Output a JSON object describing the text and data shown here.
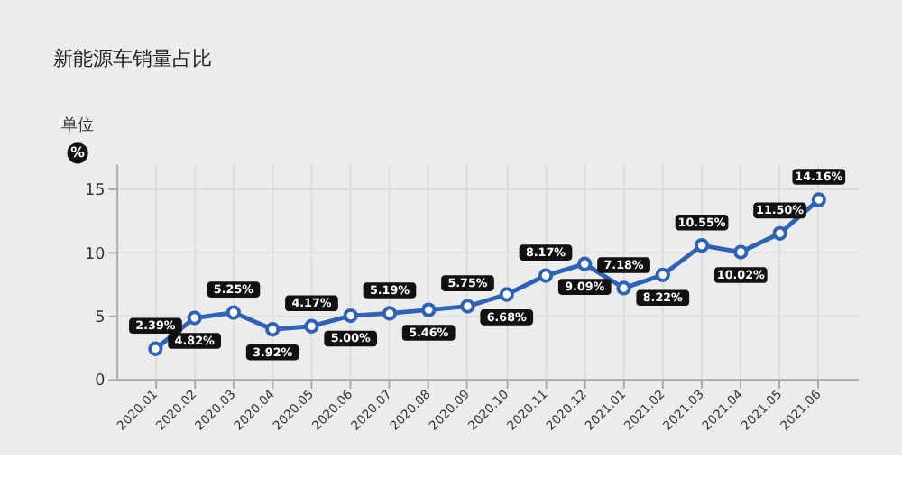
{
  "chart_data": {
    "type": "line",
    "title": "新能源车销量占比",
    "ylabel": "单位",
    "annotations": [
      "%"
    ],
    "categories": [
      "2020.01",
      "2020.02",
      "2020.03",
      "2020.04",
      "2020.05",
      "2020.06",
      "2020.07",
      "2020.08",
      "2020.09",
      "2020.10",
      "2020.11",
      "2020.12",
      "2021.01",
      "2021.02",
      "2021.03",
      "2021.04",
      "2021.05",
      "2021.06"
    ],
    "series": [
      {
        "color": "#2e62b5",
        "values": [
          2.39,
          4.82,
          5.25,
          3.92,
          4.17,
          5.0,
          5.19,
          5.46,
          5.75,
          6.68,
          8.17,
          9.09,
          7.18,
          8.22,
          10.55,
          10.02,
          11.5,
          14.16
        ],
        "value_labels": [
          "2.39%",
          "4.82%",
          "5.25%",
          "3.92%",
          "4.17%",
          "5.00%",
          "5.19%",
          "5.46%",
          "5.75%",
          "6.68%",
          "8.17%",
          "9.09%",
          "7.18%",
          "8.22%",
          "10.55%",
          "10.02%",
          "11.50%",
          "14.16%"
        ]
      }
    ],
    "ylim": [
      0,
      17
    ],
    "yticks": [
      0,
      5,
      10,
      15
    ],
    "grid": true,
    "marker": "circle",
    "line_style": "solid"
  }
}
